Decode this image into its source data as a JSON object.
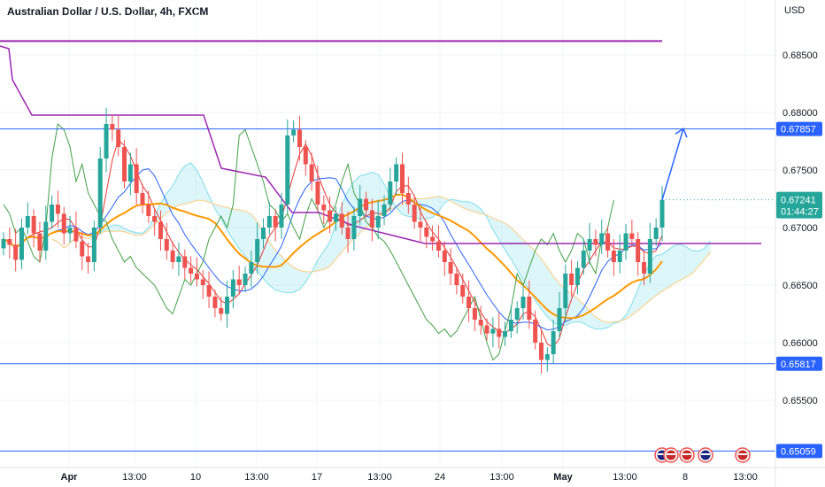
{
  "header": {
    "title": "Australian Dollar / U.S. Dollar, 4h, FXCM"
  },
  "chart_data": {
    "type": "candlestick",
    "title": "Australian Dollar / U.S. Dollar, 4h, FXCM",
    "currency": "USD",
    "ylim": [
      0.65,
      0.6885
    ],
    "y_ticks": [
      "0.68500",
      "0.68000",
      "0.67500",
      "0.67000",
      "0.66500",
      "0.66000",
      "0.65500"
    ],
    "x_ticks": [
      "Apr",
      "13:00",
      "10",
      "13:00",
      "17",
      "13:00",
      "24",
      "13:00",
      "May",
      "13:00",
      "8",
      "13:00"
    ],
    "horizontal_levels": [
      {
        "value": 0.67857,
        "label": "0.67857",
        "color": "#2962ff"
      },
      {
        "value": 0.65817,
        "label": "0.65817",
        "color": "#2962ff"
      },
      {
        "value": 0.65059,
        "label": "0.65059",
        "color": "#2962ff"
      }
    ],
    "resistance_line": {
      "value": 0.6862,
      "color": "#9c27b0"
    },
    "last_price": {
      "value": 0.67241,
      "label": "0.67241",
      "countdown": "01:44:27",
      "color": "#26a69a"
    },
    "projection": {
      "from": 0.6724,
      "to": 0.6786,
      "color": "#2962ff"
    },
    "candles_close": [
      0.669,
      0.6685,
      0.6672,
      0.67,
      0.671,
      0.6695,
      0.668,
      0.6705,
      0.672,
      0.6712,
      0.6695,
      0.67,
      0.6688,
      0.6675,
      0.667,
      0.67,
      0.676,
      0.679,
      0.6785,
      0.677,
      0.674,
      0.6755,
      0.673,
      0.672,
      0.671,
      0.6705,
      0.669,
      0.668,
      0.667,
      0.6675,
      0.6665,
      0.666,
      0.6655,
      0.665,
      0.664,
      0.663,
      0.6625,
      0.664,
      0.6655,
      0.665,
      0.666,
      0.667,
      0.669,
      0.67,
      0.671,
      0.67,
      0.672,
      0.678,
      0.6785,
      0.677,
      0.6755,
      0.674,
      0.672,
      0.6715,
      0.6705,
      0.6712,
      0.67,
      0.669,
      0.671,
      0.6725,
      0.6715,
      0.67,
      0.671,
      0.672,
      0.674,
      0.6755,
      0.673,
      0.672,
      0.6705,
      0.67,
      0.6692,
      0.6688,
      0.668,
      0.667,
      0.666,
      0.665,
      0.664,
      0.663,
      0.662,
      0.6615,
      0.6608,
      0.6612,
      0.6605,
      0.661,
      0.662,
      0.663,
      0.664,
      0.662,
      0.66,
      0.6585,
      0.659,
      0.661,
      0.663,
      0.666,
      0.665,
      0.6665,
      0.668,
      0.669,
      0.6685,
      0.6695,
      0.668,
      0.667,
      0.668,
      0.6695,
      0.669,
      0.667,
      0.666,
      0.669,
      0.67,
      0.6724
    ]
  }
}
